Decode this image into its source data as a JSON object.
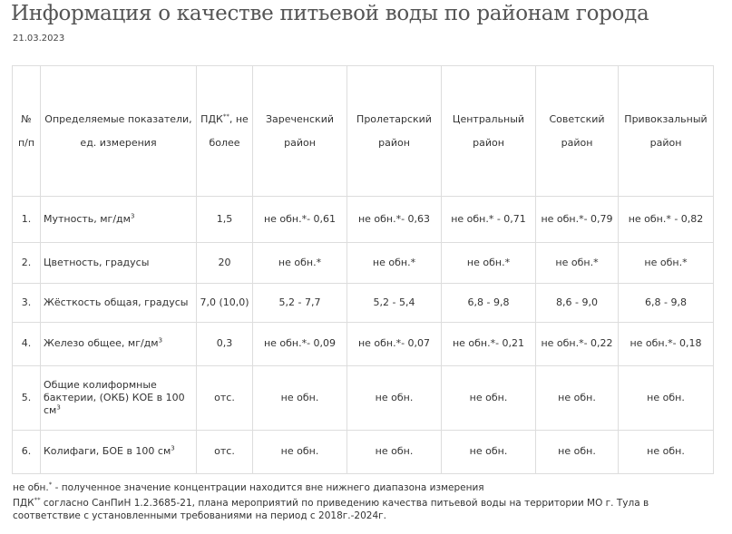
{
  "page": {
    "title": "Информация о качестве питьевой воды по районам города",
    "date": "21.03.2023"
  },
  "table": {
    "header": {
      "num": "№ п/п",
      "param": "Определяемые показатели, ед. измерения",
      "pdk_label": "ПДК",
      "pdk_sup": "**",
      "pdk_after": ", не более",
      "districts": [
        "Зареченский район",
        "Пролетарский район",
        "Центральный район",
        "Советский район",
        "Привокзальный район"
      ]
    },
    "rows": [
      {
        "num": "1.",
        "param": "Мутность,  мг/дм",
        "param_sup": "3",
        "pdk": "1,5",
        "values": [
          "не обн.*- 0,61",
          "не обн.*- 0,63",
          "не обн.* - 0,71",
          "не обн.*- 0,79",
          "не обн.* - 0,82"
        ]
      },
      {
        "num": "2.",
        "param": "Цветность, градусы",
        "param_sup": "",
        "pdk": "20",
        "values": [
          "не обн.*",
          "не обн.*",
          "не обн.*",
          "не обн.*",
          "не обн.*"
        ]
      },
      {
        "num": "3.",
        "param": "Жёсткость общая,  градусы",
        "param_sup": "",
        "pdk": "7,0 (10,0)",
        "values": [
          "5,2 - 7,7",
          "5,2 - 5,4",
          "6,8 - 9,8",
          "8,6 - 9,0",
          "6,8 - 9,8"
        ]
      },
      {
        "num": "4.",
        "param": "Железо общее, мг/дм",
        "param_sup": "3",
        "pdk": "0,3",
        "values": [
          "не обн.*- 0,09",
          "не обн.*- 0,07",
          "не обн.*- 0,21",
          "не обн.*- 0,22",
          "не обн.*- 0,18"
        ]
      },
      {
        "num": "5.",
        "param": "Общие колиформные бактерии, (ОКБ) КОЕ в 100 см",
        "param_sup": "3",
        "pdk": "отс.",
        "values": [
          "не обн.",
          "не обн.",
          "не обн.",
          "не обн.",
          "не обн."
        ]
      },
      {
        "num": "6.",
        "param": "Колифаги, БОЕ в 100 см",
        "param_sup": "3",
        "pdk": "отс.",
        "values": [
          "не обн.",
          "не обн.",
          "не обн.",
          "не обн.",
          "не обн."
        ]
      }
    ]
  },
  "footnotes": {
    "note1_prefix": "не обн.",
    "note1_sup": "*",
    "note1_text": " - полученное значение концентрации находится вне нижнего диапазона измерения",
    "note2_prefix": "ПДК",
    "note2_sup": "**",
    "note2_text": " согласно СанПиН 1.2.3685-21, плана мероприятий по приведению качества питьевой воды на территории МО г. Тула в соответствие с установленными требованиями на период с 2018г.-2024г."
  }
}
